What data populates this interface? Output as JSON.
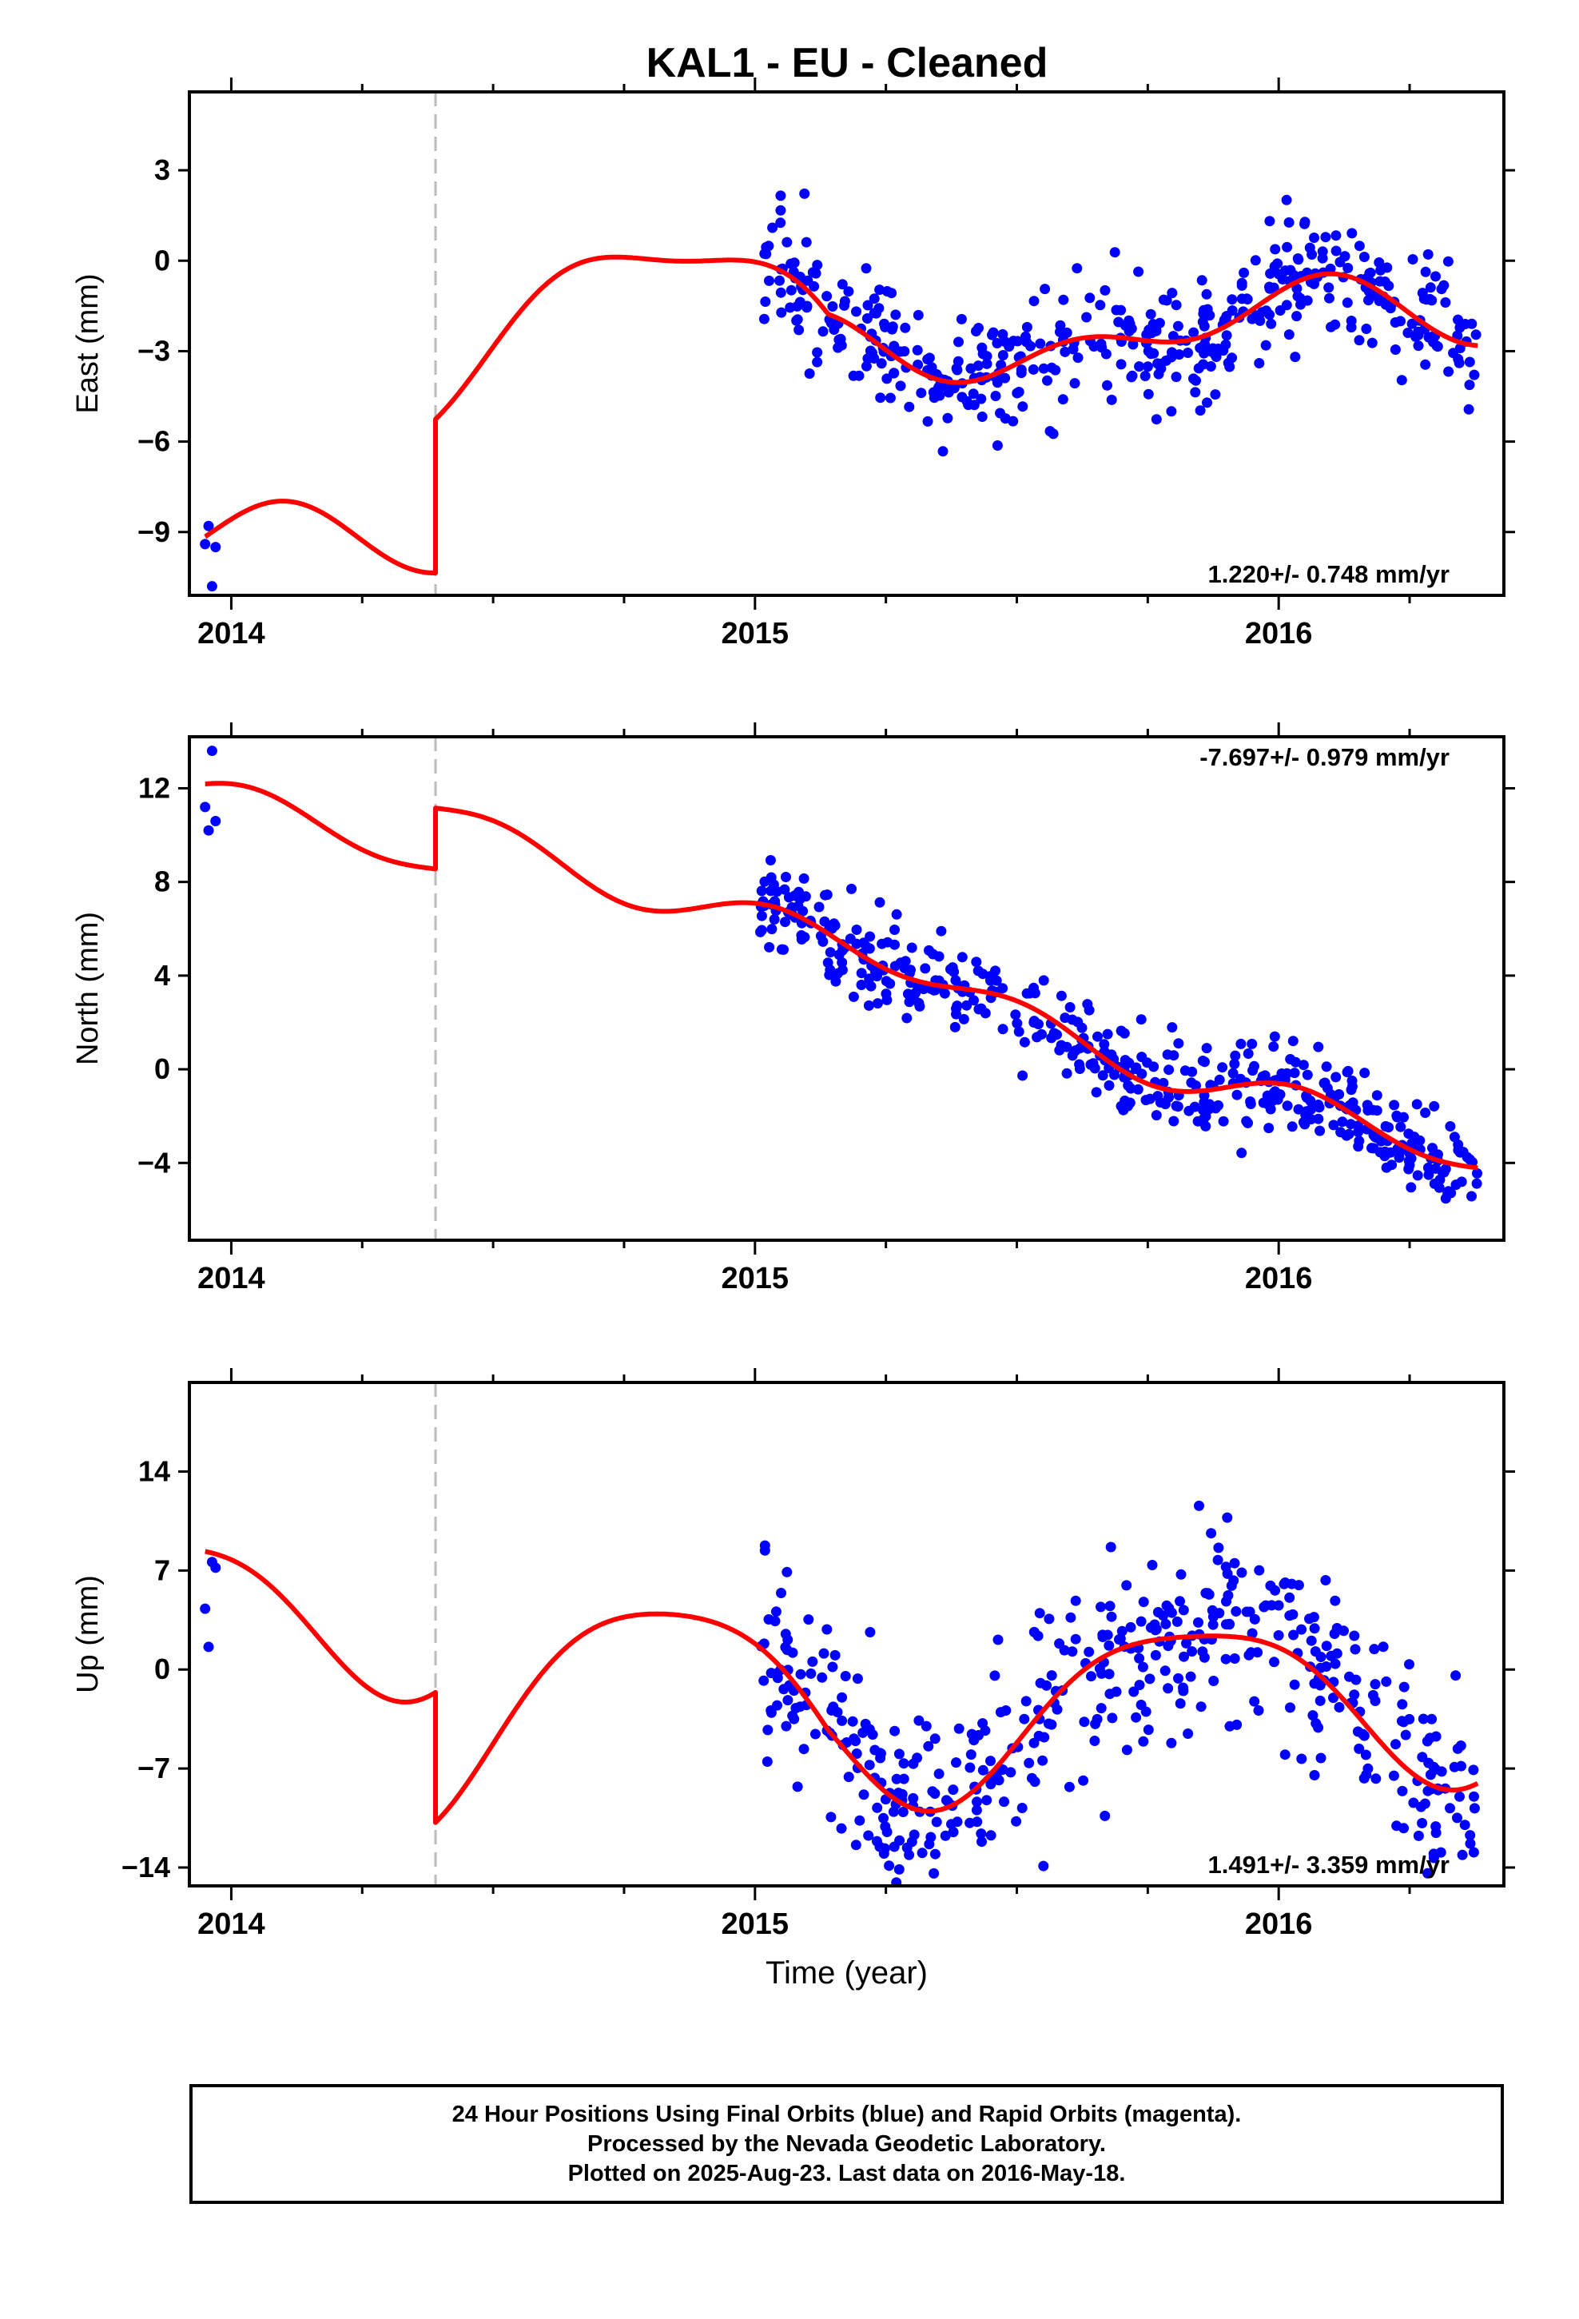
{
  "title": "KAL1  - EU - Cleaned",
  "colors": {
    "data": "#0000ff",
    "model": "#ff0000",
    "offset_line": "#bbbbbb",
    "frame": "#000000"
  },
  "chart_data": [
    {
      "type": "scatter",
      "panel": "east",
      "ylabel": "East (mm)",
      "ylim": [
        -11.1,
        5.6
      ],
      "yticks": [
        3,
        0,
        -3,
        -6,
        -9
      ],
      "ytick_labels": [
        "3",
        "0",
        "−3",
        "−6",
        "−9"
      ],
      "xlim": [
        2013.92,
        2016.43
      ],
      "xticks": [
        2014,
        2015,
        2016
      ],
      "xtick_labels": [
        "2014",
        "2015",
        "2016"
      ],
      "velocity_label": "1.220+/- 0.748 mm/yr",
      "velocity_position": "bottom-right",
      "offset_epoch": 2014.39,
      "model": {
        "trend": [
          -9.6,
          1.22
        ],
        "annual": [
          0.9,
          1.4
        ],
        "semiannual": [
          0.7,
          0.2
        ],
        "offset": 5.1,
        "post_offset": [
          4.0,
          0.85
        ]
      },
      "series": [
        {
          "role": "data",
          "start": [
            2013.95,
            2013.97
          ],
          "values": [
            -9.4,
            -8.8,
            -10.8,
            -9.5
          ],
          "x_range": [
            2015.01,
            2016.38
          ],
          "noise": 1.05,
          "count": 470
        },
        {
          "role": "model"
        }
      ]
    },
    {
      "type": "scatter",
      "panel": "north",
      "ylabel": "North (mm)",
      "ylim": [
        -7.3,
        14.2
      ],
      "yticks": [
        12,
        8,
        4,
        0,
        -4
      ],
      "ytick_labels": [
        "12",
        "8",
        "4",
        "0",
        "−4"
      ],
      "xlim": [
        2013.92,
        2016.43
      ],
      "xticks": [
        2014,
        2015,
        2016
      ],
      "xtick_labels": [
        "2014",
        "2015",
        "2016"
      ],
      "velocity_label": "-7.697+/- 0.979 mm/yr",
      "velocity_position": "top-right",
      "offset_epoch": 2014.39,
      "model": {
        "trend": [
          11.4,
          -7.697
        ],
        "annual": [
          0.55,
          0.3
        ],
        "semiannual": [
          0.65,
          1.3
        ],
        "offset": 2.6,
        "post_offset": [
          0,
          1
        ]
      },
      "series": [
        {
          "role": "data",
          "start": [
            2013.95,
            2013.97
          ],
          "values": [
            11.2,
            10.2,
            13.6,
            10.6
          ],
          "x_range": [
            2015.01,
            2016.38
          ],
          "noise": 0.9,
          "count": 470
        },
        {
          "role": "model"
        }
      ]
    },
    {
      "type": "scatter",
      "panel": "up",
      "ylabel": "Up (mm)",
      "xlabel": "Time (year)",
      "ylim": [
        -15.3,
        20.3
      ],
      "yticks": [
        14,
        7,
        0,
        -7,
        -14
      ],
      "ytick_labels": [
        "14",
        "7",
        "0",
        "−7",
        "−14"
      ],
      "xlim": [
        2013.92,
        2016.43
      ],
      "xticks": [
        2014,
        2015,
        2016
      ],
      "xtick_labels": [
        "2014",
        "2015",
        "2016"
      ],
      "velocity_label": "1.491+/- 3.359 mm/yr",
      "velocity_position": "bottom-right",
      "offset_epoch": 2014.39,
      "model": {
        "trend": [
          4.2,
          1.491
        ],
        "annual": [
          5.8,
          2.6
        ],
        "semiannual": [
          1.2,
          0.5
        ],
        "offset": -9.2,
        "post_offset": [
          3.2,
          1.05
        ]
      },
      "series": [
        {
          "role": "data",
          "start": [
            2013.95,
            2013.97
          ],
          "values": [
            4.3,
            1.6,
            7.6,
            7.2
          ],
          "x_range": [
            2015.01,
            2016.38
          ],
          "noise": 3.6,
          "count": 470
        },
        {
          "role": "model"
        }
      ]
    }
  ],
  "footer": {
    "line1": "24 Hour Positions Using Final Orbits (blue) and Rapid Orbits (magenta).",
    "line2": "Processed by the Nevada Geodetic Laboratory.",
    "line3": "Plotted on 2025-Aug-23. Last data on 2016-May-18."
  }
}
